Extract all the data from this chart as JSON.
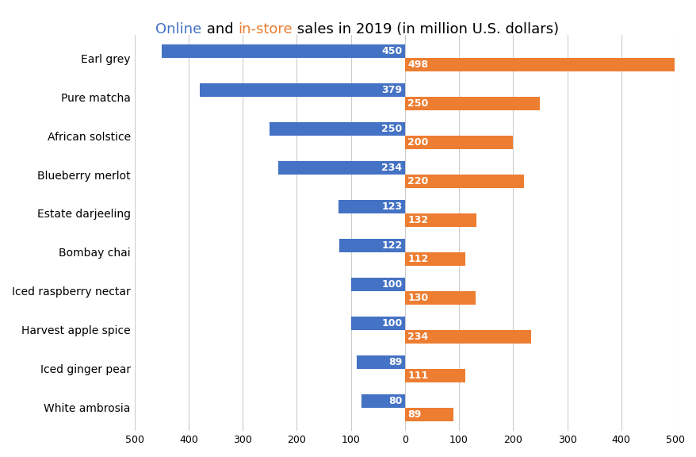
{
  "categories": [
    "Earl grey",
    "Pure matcha",
    "African solstice",
    "Blueberry merlot",
    "Estate darjeeling",
    "Bombay chai",
    "Iced raspberry nectar",
    "Harvest apple spice",
    "Iced ginger pear",
    "White ambrosia"
  ],
  "online_values": [
    450,
    379,
    250,
    234,
    123,
    122,
    100,
    100,
    89,
    80
  ],
  "instore_values": [
    498,
    250,
    200,
    220,
    132,
    112,
    130,
    234,
    111,
    89
  ],
  "online_color": "#4472C4",
  "instore_color": "#ED7D31",
  "title_online": "Online",
  "title_static": " and ",
  "title_instore": "in-store",
  "title_suffix": " sales in 2019 (in million U.S. dollars)",
  "online_color_title": "#4472C4",
  "instore_color_title": "#ED7D31",
  "title_color_static": "#000000",
  "xlim": [
    -500,
    500
  ],
  "bar_height": 0.35,
  "label_fontsize": 9,
  "tick_fontsize": 9,
  "category_fontsize": 10,
  "title_fontsize": 13,
  "background_color": "#FFFFFF",
  "grid_color": "#CCCCCC"
}
